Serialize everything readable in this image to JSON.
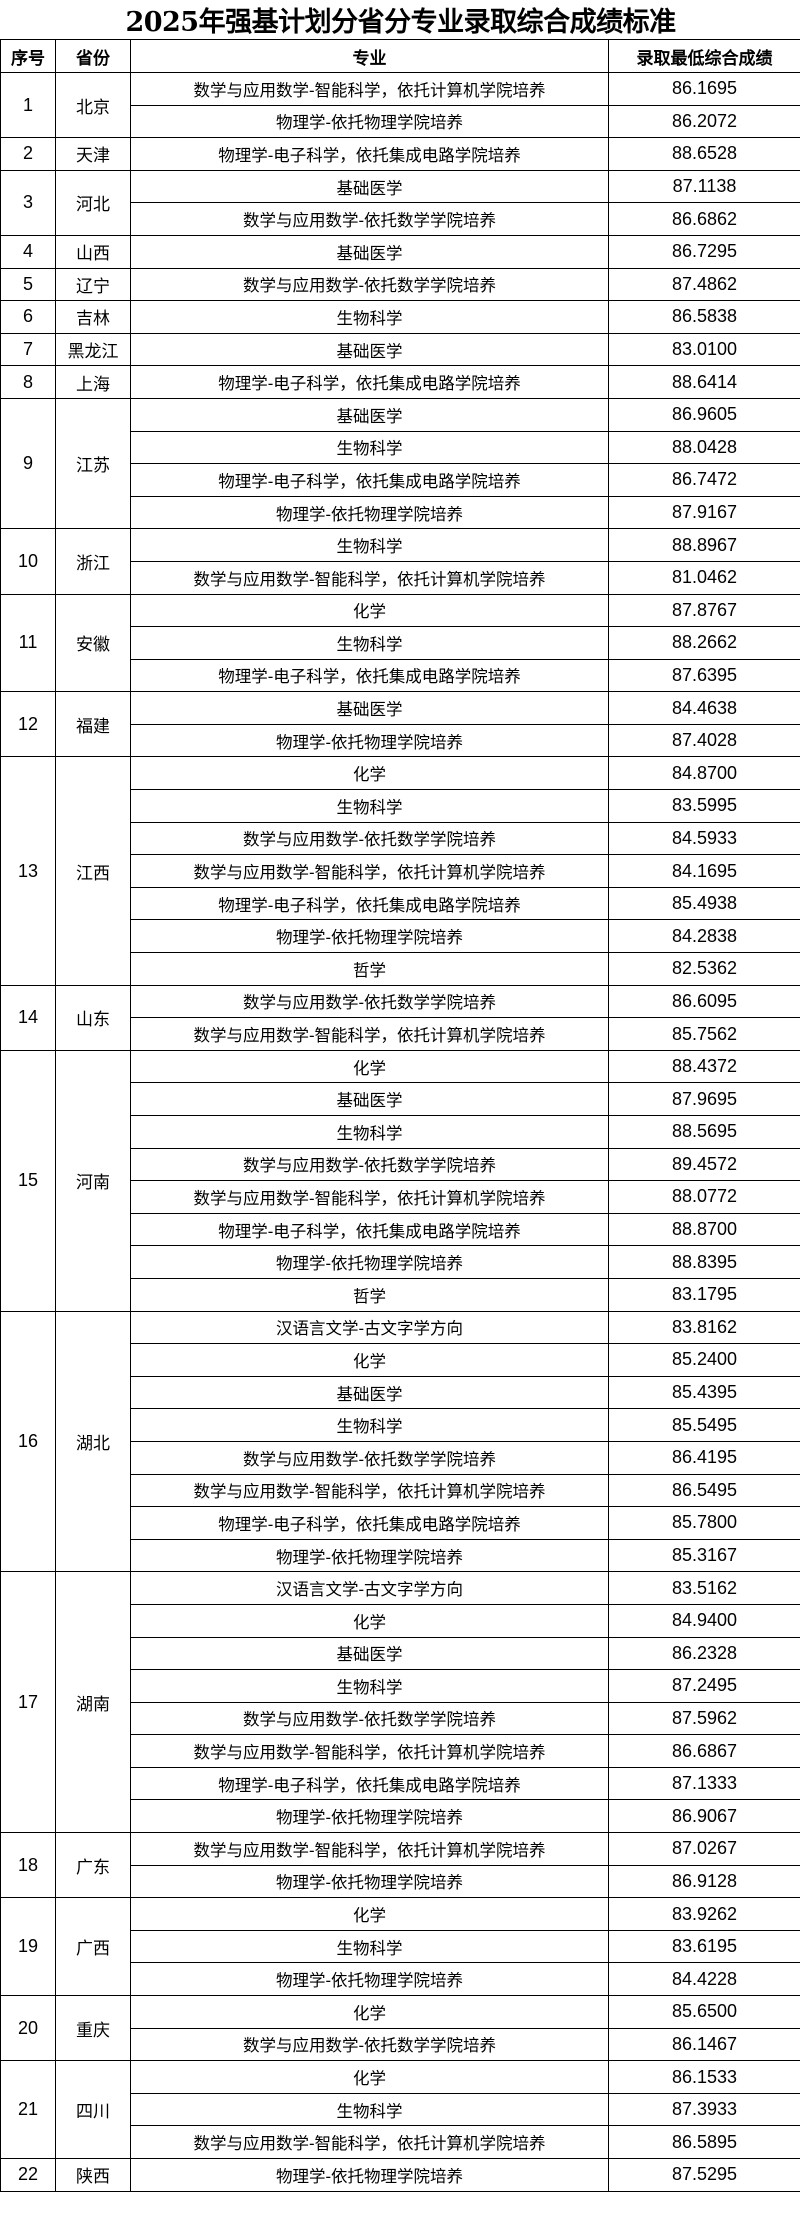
{
  "title": "2025年强基计划分省分专业录取综合成绩标准",
  "headers": {
    "index": "序号",
    "province": "省份",
    "major": "专业",
    "score": "录取最低综合成绩"
  },
  "provinces": [
    {
      "index": "1",
      "name": "北京",
      "rows": [
        [
          "数学与应用数学-智能科学，依托计算机学院培养",
          "86.1695"
        ],
        [
          "物理学-依托物理学院培养",
          "86.2072"
        ]
      ]
    },
    {
      "index": "2",
      "name": "天津",
      "rows": [
        [
          "物理学-电子科学，依托集成电路学院培养",
          "88.6528"
        ]
      ]
    },
    {
      "index": "3",
      "name": "河北",
      "rows": [
        [
          "基础医学",
          "87.1138"
        ],
        [
          "数学与应用数学-依托数学学院培养",
          "86.6862"
        ]
      ]
    },
    {
      "index": "4",
      "name": "山西",
      "rows": [
        [
          "基础医学",
          "86.7295"
        ]
      ]
    },
    {
      "index": "5",
      "name": "辽宁",
      "rows": [
        [
          "数学与应用数学-依托数学学院培养",
          "87.4862"
        ]
      ]
    },
    {
      "index": "6",
      "name": "吉林",
      "rows": [
        [
          "生物科学",
          "86.5838"
        ]
      ]
    },
    {
      "index": "7",
      "name": "黑龙江",
      "rows": [
        [
          "基础医学",
          "83.0100"
        ]
      ]
    },
    {
      "index": "8",
      "name": "上海",
      "rows": [
        [
          "物理学-电子科学，依托集成电路学院培养",
          "88.6414"
        ]
      ]
    },
    {
      "index": "9",
      "name": "江苏",
      "rows": [
        [
          "基础医学",
          "86.9605"
        ],
        [
          "生物科学",
          "88.0428"
        ],
        [
          "物理学-电子科学，依托集成电路学院培养",
          "86.7472"
        ],
        [
          "物理学-依托物理学院培养",
          "87.9167"
        ]
      ]
    },
    {
      "index": "10",
      "name": "浙江",
      "rows": [
        [
          "生物科学",
          "88.8967"
        ],
        [
          "数学与应用数学-智能科学，依托计算机学院培养",
          "81.0462"
        ]
      ]
    },
    {
      "index": "11",
      "name": "安徽",
      "rows": [
        [
          "化学",
          "87.8767"
        ],
        [
          "生物科学",
          "88.2662"
        ],
        [
          "物理学-电子科学，依托集成电路学院培养",
          "87.6395"
        ]
      ]
    },
    {
      "index": "12",
      "name": "福建",
      "rows": [
        [
          "基础医学",
          "84.4638"
        ],
        [
          "物理学-依托物理学院培养",
          "87.4028"
        ]
      ]
    },
    {
      "index": "13",
      "name": "江西",
      "rows": [
        [
          "化学",
          "84.8700"
        ],
        [
          "生物科学",
          "83.5995"
        ],
        [
          "数学与应用数学-依托数学学院培养",
          "84.5933"
        ],
        [
          "数学与应用数学-智能科学，依托计算机学院培养",
          "84.1695"
        ],
        [
          "物理学-电子科学，依托集成电路学院培养",
          "85.4938"
        ],
        [
          "物理学-依托物理学院培养",
          "84.2838"
        ],
        [
          "哲学",
          "82.5362"
        ]
      ]
    },
    {
      "index": "14",
      "name": "山东",
      "rows": [
        [
          "数学与应用数学-依托数学学院培养",
          "86.6095"
        ],
        [
          "数学与应用数学-智能科学，依托计算机学院培养",
          "85.7562"
        ]
      ]
    },
    {
      "index": "15",
      "name": "河南",
      "rows": [
        [
          "化学",
          "88.4372"
        ],
        [
          "基础医学",
          "87.9695"
        ],
        [
          "生物科学",
          "88.5695"
        ],
        [
          "数学与应用数学-依托数学学院培养",
          "89.4572"
        ],
        [
          "数学与应用数学-智能科学，依托计算机学院培养",
          "88.0772"
        ],
        [
          "物理学-电子科学，依托集成电路学院培养",
          "88.8700"
        ],
        [
          "物理学-依托物理学院培养",
          "88.8395"
        ],
        [
          "哲学",
          "83.1795"
        ]
      ]
    },
    {
      "index": "16",
      "name": "湖北",
      "rows": [
        [
          "汉语言文学-古文字学方向",
          "83.8162"
        ],
        [
          "化学",
          "85.2400"
        ],
        [
          "基础医学",
          "85.4395"
        ],
        [
          "生物科学",
          "85.5495"
        ],
        [
          "数学与应用数学-依托数学学院培养",
          "86.4195"
        ],
        [
          "数学与应用数学-智能科学，依托计算机学院培养",
          "86.5495"
        ],
        [
          "物理学-电子科学，依托集成电路学院培养",
          "85.7800"
        ],
        [
          "物理学-依托物理学院培养",
          "85.3167"
        ]
      ]
    },
    {
      "index": "17",
      "name": "湖南",
      "rows": [
        [
          "汉语言文学-古文字学方向",
          "83.5162"
        ],
        [
          "化学",
          "84.9400"
        ],
        [
          "基础医学",
          "86.2328"
        ],
        [
          "生物科学",
          "87.2495"
        ],
        [
          "数学与应用数学-依托数学学院培养",
          "87.5962"
        ],
        [
          "数学与应用数学-智能科学，依托计算机学院培养",
          "86.6867"
        ],
        [
          "物理学-电子科学，依托集成电路学院培养",
          "87.1333"
        ],
        [
          "物理学-依托物理学院培养",
          "86.9067"
        ]
      ]
    },
    {
      "index": "18",
      "name": "广东",
      "rows": [
        [
          "数学与应用数学-智能科学，依托计算机学院培养",
          "87.0267"
        ],
        [
          "物理学-依托物理学院培养",
          "86.9128"
        ]
      ]
    },
    {
      "index": "19",
      "name": "广西",
      "rows": [
        [
          "化学",
          "83.9262"
        ],
        [
          "生物科学",
          "83.6195"
        ],
        [
          "物理学-依托物理学院培养",
          "84.4228"
        ]
      ]
    },
    {
      "index": "20",
      "name": "重庆",
      "rows": [
        [
          "化学",
          "85.6500"
        ],
        [
          "数学与应用数学-依托数学学院培养",
          "86.1467"
        ]
      ]
    },
    {
      "index": "21",
      "name": "四川",
      "rows": [
        [
          "化学",
          "86.1533"
        ],
        [
          "生物科学",
          "87.3933"
        ],
        [
          "数学与应用数学-智能科学，依托计算机学院培养",
          "86.5895"
        ]
      ]
    },
    {
      "index": "22",
      "name": "陕西",
      "rows": [
        [
          "物理学-依托物理学院培养",
          "87.5295"
        ]
      ]
    }
  ]
}
